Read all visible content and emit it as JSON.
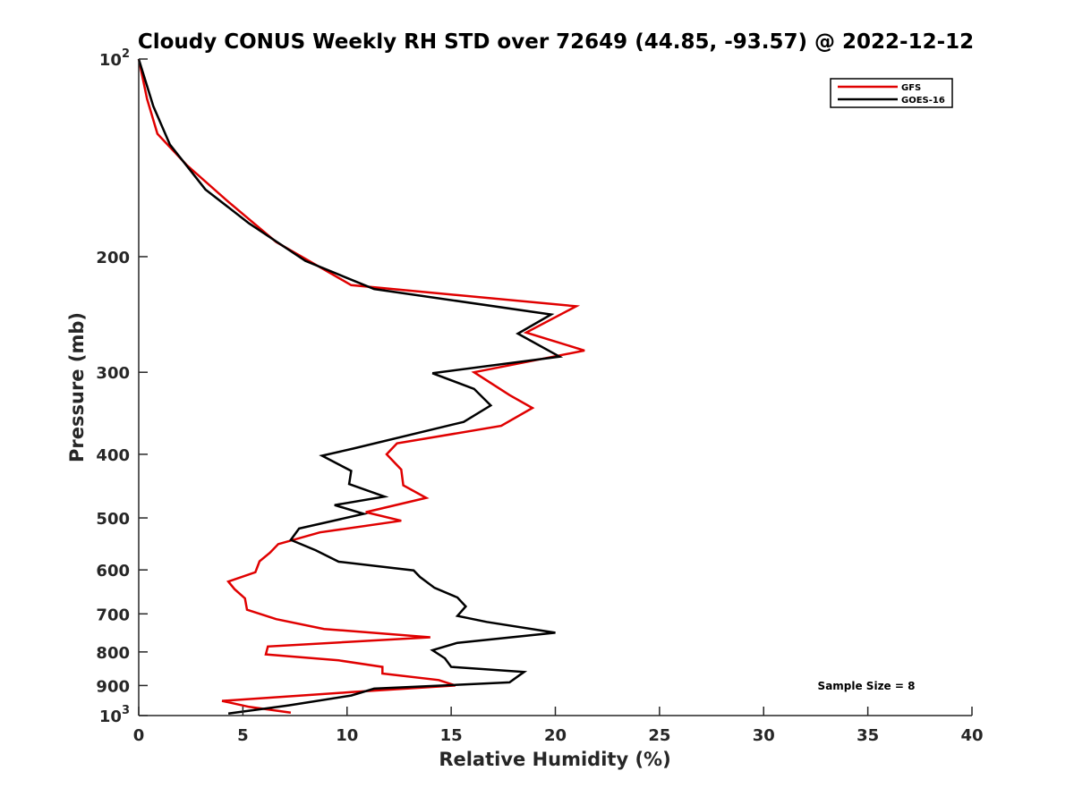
{
  "chart_data": {
    "type": "line",
    "title": "Cloudy CONUS Weekly RH STD over 72649 (44.85, -93.57) @ 2022-12-12",
    "xlabel": "Relative Humidity (%)",
    "ylabel": "Pressure (mb)",
    "xlim": [
      0,
      40
    ],
    "ylim": [
      100,
      1000
    ],
    "yscale": "log",
    "y_reversed": true,
    "grid": false,
    "legend_position": "top-right",
    "x_ticks": [
      "0",
      "5",
      "10",
      "15",
      "20",
      "25",
      "30",
      "35",
      "40"
    ],
    "y_ticks": [
      {
        "value": 100,
        "base": "10",
        "exp": "2"
      },
      {
        "value": 200,
        "label": "200"
      },
      {
        "value": 300,
        "label": "300"
      },
      {
        "value": 400,
        "label": "400"
      },
      {
        "value": 500,
        "label": "500"
      },
      {
        "value": 600,
        "label": "600"
      },
      {
        "value": 700,
        "label": "700"
      },
      {
        "value": 800,
        "label": "800"
      },
      {
        "value": 900,
        "label": "900"
      },
      {
        "value": 1000,
        "base": "10",
        "exp": "3"
      }
    ],
    "annotation": "Sample Size = 8",
    "series": [
      {
        "name": "GFS",
        "color": "#e00000",
        "points": [
          [
            0.0,
            100
          ],
          [
            0.4,
            115
          ],
          [
            0.9,
            130
          ],
          [
            2.3,
            145
          ],
          [
            4.3,
            165
          ],
          [
            6.6,
            190
          ],
          [
            10.2,
            221
          ],
          [
            21.0,
            238
          ],
          [
            18.6,
            261
          ],
          [
            21.4,
            278
          ],
          [
            16.1,
            300
          ],
          [
            17.8,
            325
          ],
          [
            18.9,
            340
          ],
          [
            17.4,
            362
          ],
          [
            12.4,
            385
          ],
          [
            11.9,
            400
          ],
          [
            12.6,
            422
          ],
          [
            12.7,
            446
          ],
          [
            13.8,
            466
          ],
          [
            10.9,
            490
          ],
          [
            12.6,
            505
          ],
          [
            8.7,
            526
          ],
          [
            6.7,
            548
          ],
          [
            6.3,
            565
          ],
          [
            5.8,
            582
          ],
          [
            5.6,
            605
          ],
          [
            4.3,
            625
          ],
          [
            4.6,
            642
          ],
          [
            5.1,
            663
          ],
          [
            5.2,
            690
          ],
          [
            6.6,
            713
          ],
          [
            8.9,
            738
          ],
          [
            14.0,
            760
          ],
          [
            6.2,
            785
          ],
          [
            6.1,
            807
          ],
          [
            9.6,
            824
          ],
          [
            11.7,
            843
          ],
          [
            11.7,
            863
          ],
          [
            14.4,
            883
          ],
          [
            15.2,
            900
          ],
          [
            10.2,
            921
          ],
          [
            4.0,
            950
          ],
          [
            5.3,
            970
          ],
          [
            7.3,
            990
          ]
        ]
      },
      {
        "name": "GOES-16",
        "color": "#000000",
        "points": [
          [
            0.0,
            100
          ],
          [
            0.7,
            118
          ],
          [
            1.5,
            135
          ],
          [
            3.2,
            158
          ],
          [
            5.3,
            178
          ],
          [
            8.0,
            203
          ],
          [
            11.3,
            224
          ],
          [
            19.8,
            245
          ],
          [
            18.2,
            262
          ],
          [
            20.2,
            284
          ],
          [
            14.1,
            301
          ],
          [
            16.1,
            318
          ],
          [
            16.9,
            337
          ],
          [
            15.6,
            357
          ],
          [
            10.3,
            392
          ],
          [
            8.8,
            402
          ],
          [
            10.2,
            424
          ],
          [
            10.1,
            444
          ],
          [
            11.8,
            464
          ],
          [
            9.4,
            478
          ],
          [
            10.8,
            493
          ],
          [
            7.7,
            519
          ],
          [
            7.3,
            540
          ],
          [
            8.5,
            560
          ],
          [
            9.6,
            583
          ],
          [
            13.2,
            601
          ],
          [
            13.5,
            615
          ],
          [
            14.2,
            639
          ],
          [
            15.3,
            661
          ],
          [
            15.7,
            682
          ],
          [
            15.3,
            705
          ],
          [
            16.7,
            720
          ],
          [
            20.0,
            748
          ],
          [
            15.3,
            775
          ],
          [
            14.1,
            795
          ],
          [
            14.7,
            818
          ],
          [
            15.0,
            843
          ],
          [
            18.5,
            858
          ],
          [
            17.8,
            890
          ],
          [
            11.3,
            910
          ],
          [
            10.2,
            932
          ],
          [
            7.2,
            965
          ],
          [
            4.3,
            993
          ]
        ]
      }
    ]
  }
}
